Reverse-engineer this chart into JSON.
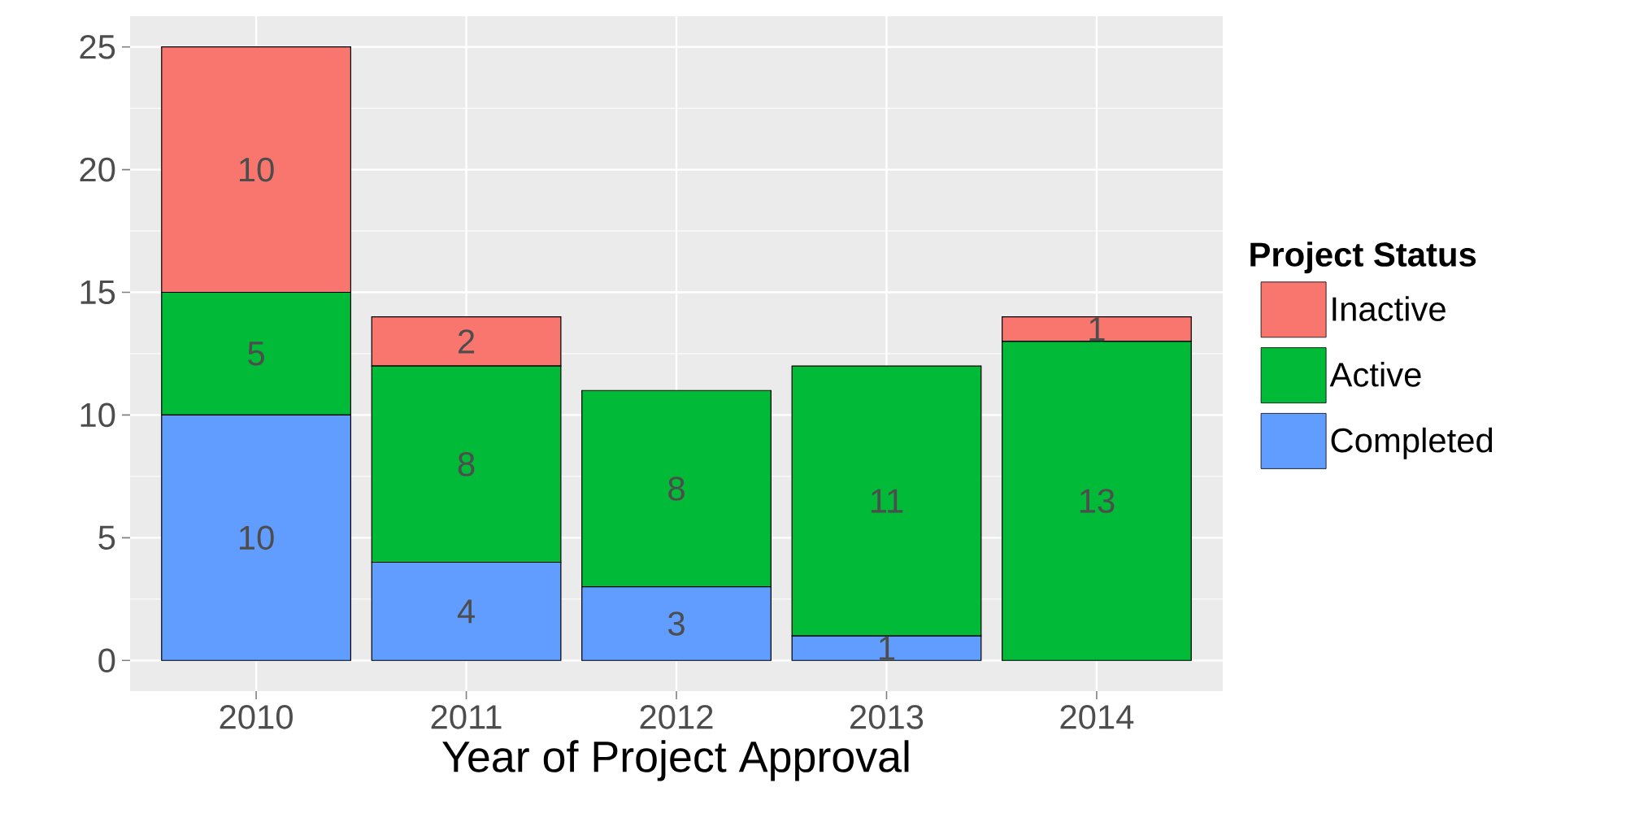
{
  "chart_data": {
    "type": "bar",
    "stacked": true,
    "xlabel": "Year of Project Approval",
    "legend_title": "Project Status",
    "legend": "right",
    "grid": true,
    "categories": [
      "2010",
      "2011",
      "2012",
      "2013",
      "2014"
    ],
    "series": [
      {
        "name": "Completed",
        "color": "#619cff",
        "values": [
          10,
          4,
          3,
          1,
          0
        ],
        "value_labels": [
          "10",
          "4",
          "3",
          "1",
          null
        ]
      },
      {
        "name": "Active",
        "color": "#00ba38",
        "values": [
          5,
          8,
          8,
          11,
          13
        ],
        "value_labels": [
          "5",
          "8",
          "8",
          "11",
          "13"
        ]
      },
      {
        "name": "Inactive",
        "color": "#f8766d",
        "values": [
          10,
          2,
          0,
          0,
          1
        ],
        "value_labels": [
          "10",
          "2",
          null,
          null,
          "1"
        ]
      }
    ],
    "ylim": [
      -1.25,
      26.25
    ],
    "yticks": [
      0,
      5,
      10,
      15,
      20,
      25
    ]
  }
}
